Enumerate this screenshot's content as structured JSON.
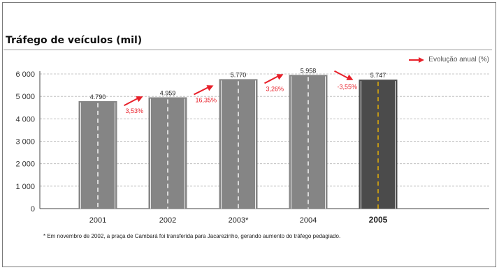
{
  "footnote": "* Em novembro de 2002, a praça de Cambará foi transferida para Jacarezinho, gerando aumento do tráfego pedagiado.",
  "legend_label": "Evolução anual (%)",
  "colors": {
    "bar": "#858585",
    "bar_highlight": "#4b4b4b",
    "arrow": "#e8202a",
    "pct_text": "#e8202a",
    "lane_stripe": "#ffffff",
    "lane_stripe_highlight": "#f2b800",
    "grid": "#b5b5b5"
  },
  "chart_data": {
    "type": "bar",
    "title": "Tráfego de veículos (mil)",
    "categories": [
      "2001",
      "2002",
      "2003*",
      "2004",
      "2005"
    ],
    "values": [
      4790,
      4959,
      5770,
      5958,
      5747
    ],
    "value_labels": [
      "4.790",
      "4.959",
      "5.770",
      "5.958",
      "5.747"
    ],
    "highlight_category": "2005",
    "growth_pct": [
      "3,53%",
      "16,35%",
      "3,26%",
      "-3,55%"
    ],
    "ylim": [
      0,
      6000
    ],
    "yticks": [
      0,
      1000,
      2000,
      3000,
      4000,
      5000,
      6000
    ],
    "ytick_labels": [
      "0",
      "1 000",
      "2 000",
      "3 000",
      "4 000",
      "5 000",
      "6 000"
    ],
    "grid": true,
    "legend_position": "top-right"
  }
}
